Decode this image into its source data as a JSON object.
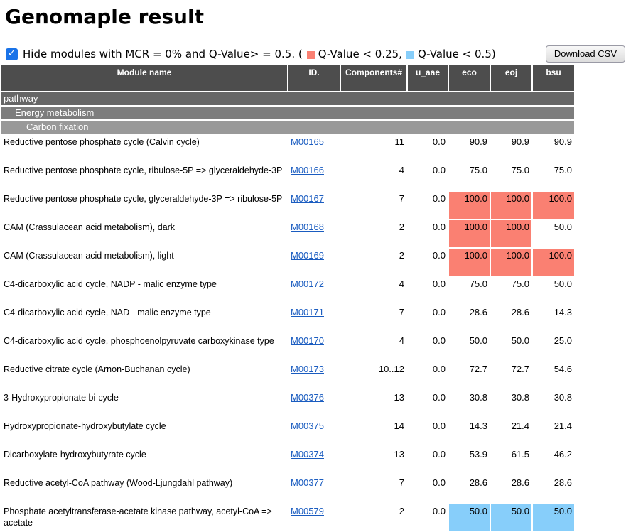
{
  "page": {
    "title": "Genomaple result"
  },
  "controls": {
    "checkbox_checked": true,
    "hide_label": "Hide modules with MCR = 0% and Q-Value> = 0.5. (",
    "legend_q25_label": "Q-Value < 0.25,",
    "legend_q50_label": "Q-Value < 0.5)",
    "download_button": "Download CSV"
  },
  "colors": {
    "accent_checkbox": "#1a73e8",
    "q_value_lt_025": "#FA8072",
    "q_value_lt_05": "#87CEFA",
    "header_bg": "#4d4d4d",
    "category_level1_bg": "#666666",
    "category_level2_bg": "#7d7d7d",
    "category_level3_bg": "#999999",
    "link": "#1a5cc0"
  },
  "table": {
    "headers": [
      "Module name",
      "ID.",
      "Components#",
      "u_aae",
      "eco",
      "eoj",
      "bsu"
    ],
    "categories": [
      {
        "label": "pathway",
        "level": 1
      },
      {
        "label": "Energy metabolism",
        "level": 2
      },
      {
        "label": "Carbon fixation",
        "level": 3
      }
    ],
    "rows": [
      {
        "name": "Reductive pentose phosphate cycle (Calvin cycle)",
        "id": "M00165",
        "components": "11",
        "u_aae": "0.0",
        "eco": "90.9",
        "eoj": "90.9",
        "bsu": "90.9",
        "hl": [
          "",
          "",
          ""
        ]
      },
      {
        "name": "Reductive pentose phosphate cycle, ribulose-5P => glyceraldehyde-3P",
        "id": "M00166",
        "components": "4",
        "u_aae": "0.0",
        "eco": "75.0",
        "eoj": "75.0",
        "bsu": "75.0",
        "hl": [
          "",
          "",
          ""
        ]
      },
      {
        "name": "Reductive pentose phosphate cycle, glyceraldehyde-3P => ribulose-5P",
        "id": "M00167",
        "components": "7",
        "u_aae": "0.0",
        "eco": "100.0",
        "eoj": "100.0",
        "bsu": "100.0",
        "hl": [
          "q25",
          "q25",
          "q25"
        ]
      },
      {
        "name": "CAM (Crassulacean acid metabolism), dark",
        "id": "M00168",
        "components": "2",
        "u_aae": "0.0",
        "eco": "100.0",
        "eoj": "100.0",
        "bsu": "50.0",
        "hl": [
          "q25",
          "q25",
          ""
        ]
      },
      {
        "name": "CAM (Crassulacean acid metabolism), light",
        "id": "M00169",
        "components": "2",
        "u_aae": "0.0",
        "eco": "100.0",
        "eoj": "100.0",
        "bsu": "100.0",
        "hl": [
          "q25",
          "q25",
          "q25"
        ]
      },
      {
        "name": "C4-dicarboxylic acid cycle, NADP - malic enzyme type",
        "id": "M00172",
        "components": "4",
        "u_aae": "0.0",
        "eco": "75.0",
        "eoj": "75.0",
        "bsu": "50.0",
        "hl": [
          "",
          "",
          ""
        ]
      },
      {
        "name": "C4-dicarboxylic acid cycle, NAD - malic enzyme type",
        "id": "M00171",
        "components": "7",
        "u_aae": "0.0",
        "eco": "28.6",
        "eoj": "28.6",
        "bsu": "14.3",
        "hl": [
          "",
          "",
          ""
        ]
      },
      {
        "name": "C4-dicarboxylic acid cycle, phosphoenolpyruvate carboxykinase type",
        "id": "M00170",
        "components": "4",
        "u_aae": "0.0",
        "eco": "50.0",
        "eoj": "50.0",
        "bsu": "25.0",
        "hl": [
          "",
          "",
          ""
        ]
      },
      {
        "name": "Reductive citrate cycle (Arnon-Buchanan cycle)",
        "id": "M00173",
        "components": "10..12",
        "u_aae": "0.0",
        "eco": "72.7",
        "eoj": "72.7",
        "bsu": "54.6",
        "hl": [
          "",
          "",
          ""
        ]
      },
      {
        "name": "3-Hydroxypropionate bi-cycle",
        "id": "M00376",
        "components": "13",
        "u_aae": "0.0",
        "eco": "30.8",
        "eoj": "30.8",
        "bsu": "30.8",
        "hl": [
          "",
          "",
          ""
        ]
      },
      {
        "name": "Hydroxypropionate-hydroxybutylate cycle",
        "id": "M00375",
        "components": "14",
        "u_aae": "0.0",
        "eco": "14.3",
        "eoj": "21.4",
        "bsu": "21.4",
        "hl": [
          "",
          "",
          ""
        ]
      },
      {
        "name": "Dicarboxylate-hydroxybutyrate cycle",
        "id": "M00374",
        "components": "13",
        "u_aae": "0.0",
        "eco": "53.9",
        "eoj": "61.5",
        "bsu": "46.2",
        "hl": [
          "",
          "",
          ""
        ]
      },
      {
        "name": "Reductive acetyl-CoA pathway (Wood-Ljungdahl pathway)",
        "id": "M00377",
        "components": "7",
        "u_aae": "0.0",
        "eco": "28.6",
        "eoj": "28.6",
        "bsu": "28.6",
        "hl": [
          "",
          "",
          ""
        ]
      },
      {
        "name": "Phosphate acetyltransferase-acetate kinase pathway, acetyl-CoA => acetate",
        "id": "M00579",
        "components": "2",
        "u_aae": "0.0",
        "eco": "50.0",
        "eoj": "50.0",
        "bsu": "50.0",
        "hl": [
          "q50",
          "q50",
          "q50"
        ]
      }
    ]
  }
}
